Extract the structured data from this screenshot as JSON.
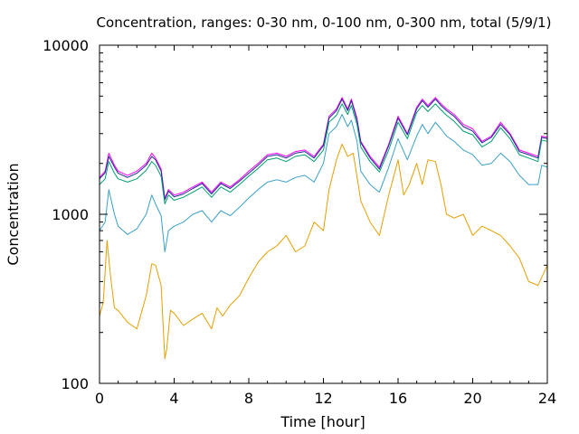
{
  "chart_data": {
    "type": "line",
    "title": "Concentration, ranges: 0-30 nm, 0-100 nm, 0-300 nm, total (5/9/1)",
    "xlabel": "Time [hour]",
    "ylabel": "Concentration",
    "xlim": [
      0,
      24
    ],
    "ylim": [
      100,
      10000
    ],
    "yscale": "log",
    "xticks": [
      0,
      4,
      8,
      12,
      16,
      20,
      24
    ],
    "yticks": [
      100,
      1000,
      10000
    ],
    "xtick_labels": [
      "0",
      "4",
      "8",
      "12",
      "16",
      "20",
      "24"
    ],
    "ytick_labels": [
      "100",
      "1000",
      "10000"
    ],
    "grid": false,
    "legend": "none",
    "series": [
      {
        "color": "#ff00ff",
        "x": [
          0,
          0.3,
          0.5,
          0.8,
          1,
          1.5,
          2,
          2.5,
          2.8,
          3,
          3.3,
          3.5,
          3.7,
          4,
          4.5,
          5,
          5.5,
          6,
          6.5,
          7,
          7.5,
          8,
          8.5,
          9,
          9.5,
          10,
          10.5,
          11,
          11.5,
          12,
          12.3,
          12.7,
          13,
          13.3,
          13.5,
          13.8,
          14,
          14.5,
          15,
          15.5,
          16,
          16.5,
          17,
          17.3,
          17.6,
          18,
          18.3,
          18.6,
          19,
          19.5,
          20,
          20.5,
          21,
          21.5,
          22,
          22.5,
          23,
          23.5,
          23.7,
          24
        ],
        "y": [
          1650,
          1800,
          2300,
          1950,
          1800,
          1700,
          1800,
          2000,
          2300,
          2150,
          1850,
          1250,
          1400,
          1300,
          1350,
          1450,
          1550,
          1350,
          1550,
          1450,
          1600,
          1800,
          2000,
          2250,
          2300,
          2200,
          2350,
          2400,
          2200,
          2600,
          3800,
          4200,
          4900,
          4200,
          4800,
          3700,
          2700,
          2200,
          1900,
          2600,
          3800,
          3000,
          4300,
          4800,
          4400,
          4900,
          4500,
          4200,
          3900,
          3400,
          3200,
          2700,
          2900,
          3500,
          3000,
          2400,
          2300,
          2200,
          2900,
          2850
        ]
      },
      {
        "color": "#1f2d8f",
        "x": [
          0,
          0.3,
          0.5,
          0.8,
          1,
          1.5,
          2,
          2.5,
          2.8,
          3,
          3.3,
          3.5,
          3.7,
          4,
          4.5,
          5,
          5.5,
          6,
          6.5,
          7,
          7.5,
          8,
          8.5,
          9,
          9.5,
          10,
          10.5,
          11,
          11.5,
          12,
          12.3,
          12.7,
          13,
          13.3,
          13.5,
          13.8,
          14,
          14.5,
          15,
          15.5,
          16,
          16.5,
          17,
          17.3,
          17.6,
          18,
          18.3,
          18.6,
          19,
          19.5,
          20,
          20.5,
          21,
          21.5,
          22,
          22.5,
          23,
          23.5,
          23.7,
          24
        ],
        "y": [
          1620,
          1760,
          2200,
          1900,
          1750,
          1650,
          1750,
          1950,
          2200,
          2100,
          1800,
          1220,
          1370,
          1270,
          1320,
          1420,
          1520,
          1320,
          1520,
          1420,
          1570,
          1750,
          1950,
          2200,
          2250,
          2150,
          2300,
          2350,
          2150,
          2550,
          3700,
          4100,
          4800,
          4100,
          4700,
          3600,
          2650,
          2150,
          1850,
          2550,
          3700,
          2950,
          4200,
          4700,
          4300,
          4800,
          4400,
          4100,
          3800,
          3300,
          3100,
          2650,
          2850,
          3400,
          2950,
          2350,
          2250,
          2150,
          2850,
          2800
        ]
      },
      {
        "color": "#009e73",
        "x": [
          0,
          0.3,
          0.5,
          0.8,
          1,
          1.5,
          2,
          2.5,
          2.8,
          3,
          3.3,
          3.5,
          3.7,
          4,
          4.5,
          5,
          5.5,
          6,
          6.5,
          7,
          7.5,
          8,
          8.5,
          9,
          9.5,
          10,
          10.5,
          11,
          11.5,
          12,
          12.3,
          12.7,
          13,
          13.3,
          13.5,
          13.8,
          14,
          14.5,
          15,
          15.5,
          16,
          16.5,
          17,
          17.3,
          17.6,
          18,
          18.3,
          18.6,
          19,
          19.5,
          20,
          20.5,
          21,
          21.5,
          22,
          22.5,
          23,
          23.5,
          23.7,
          24
        ],
        "y": [
          1500,
          1620,
          2050,
          1750,
          1620,
          1550,
          1620,
          1820,
          2050,
          1950,
          1680,
          1150,
          1300,
          1210,
          1260,
          1350,
          1450,
          1260,
          1450,
          1350,
          1500,
          1680,
          1870,
          2100,
          2150,
          2050,
          2200,
          2250,
          2050,
          2400,
          3500,
          3850,
          4500,
          3900,
          4400,
          3400,
          2500,
          2050,
          1780,
          2400,
          3500,
          2800,
          4000,
          4400,
          4050,
          4500,
          4150,
          3850,
          3550,
          3100,
          2950,
          2500,
          2700,
          3250,
          2800,
          2250,
          2150,
          2050,
          2750,
          2700
        ]
      },
      {
        "color": "#3aa0c8",
        "x": [
          0,
          0.3,
          0.5,
          0.8,
          1,
          1.5,
          2,
          2.5,
          2.8,
          3,
          3.3,
          3.5,
          3.7,
          4,
          4.5,
          5,
          5.5,
          6,
          6.5,
          7,
          7.5,
          8,
          8.5,
          9,
          9.5,
          10,
          10.5,
          11,
          11.5,
          12,
          12.3,
          12.7,
          13,
          13.3,
          13.5,
          13.8,
          14,
          14.5,
          15,
          15.5,
          16,
          16.5,
          17,
          17.3,
          17.6,
          18,
          18.3,
          18.6,
          19,
          19.5,
          20,
          20.5,
          21,
          21.5,
          22,
          22.5,
          23,
          23.5,
          23.7,
          24
        ],
        "y": [
          800,
          900,
          1400,
          1000,
          850,
          760,
          820,
          1000,
          1300,
          1150,
          980,
          600,
          800,
          850,
          900,
          1000,
          1050,
          900,
          1050,
          980,
          1100,
          1250,
          1400,
          1550,
          1600,
          1550,
          1650,
          1700,
          1550,
          2000,
          3000,
          3300,
          3900,
          3300,
          3600,
          2700,
          1800,
          1500,
          1350,
          1900,
          2800,
          2100,
          2900,
          3400,
          3000,
          3500,
          3200,
          2900,
          2700,
          2400,
          2250,
          1950,
          2000,
          2300,
          2050,
          1700,
          1500,
          1500,
          1950,
          1900
        ]
      },
      {
        "color": "#e69f00",
        "x": [
          0,
          0.2,
          0.4,
          0.6,
          0.8,
          1,
          1.5,
          2,
          2.5,
          2.8,
          3,
          3.3,
          3.5,
          3.6,
          3.8,
          4,
          4.5,
          5,
          5.5,
          6,
          6.3,
          6.6,
          7,
          7.5,
          8,
          8.5,
          9,
          9.5,
          10,
          10.5,
          11,
          11.5,
          12,
          12.3,
          12.7,
          13,
          13.3,
          13.6,
          14,
          14.5,
          15,
          15.5,
          16,
          16.3,
          16.6,
          17,
          17.3,
          17.6,
          18,
          18.3,
          18.6,
          19,
          19.5,
          20,
          20.5,
          21,
          21.5,
          22,
          22.5,
          23,
          23.5,
          24
        ],
        "y": [
          250,
          300,
          700,
          420,
          280,
          270,
          230,
          210,
          330,
          510,
          500,
          380,
          140,
          160,
          270,
          260,
          220,
          240,
          260,
          210,
          280,
          250,
          290,
          330,
          420,
          520,
          600,
          650,
          750,
          600,
          650,
          900,
          800,
          1400,
          2100,
          2600,
          2200,
          2300,
          1200,
          900,
          750,
          1300,
          2100,
          1300,
          1500,
          2000,
          1500,
          2100,
          2050,
          1500,
          1000,
          950,
          1000,
          750,
          850,
          800,
          750,
          650,
          550,
          400,
          380,
          500
        ]
      }
    ]
  }
}
